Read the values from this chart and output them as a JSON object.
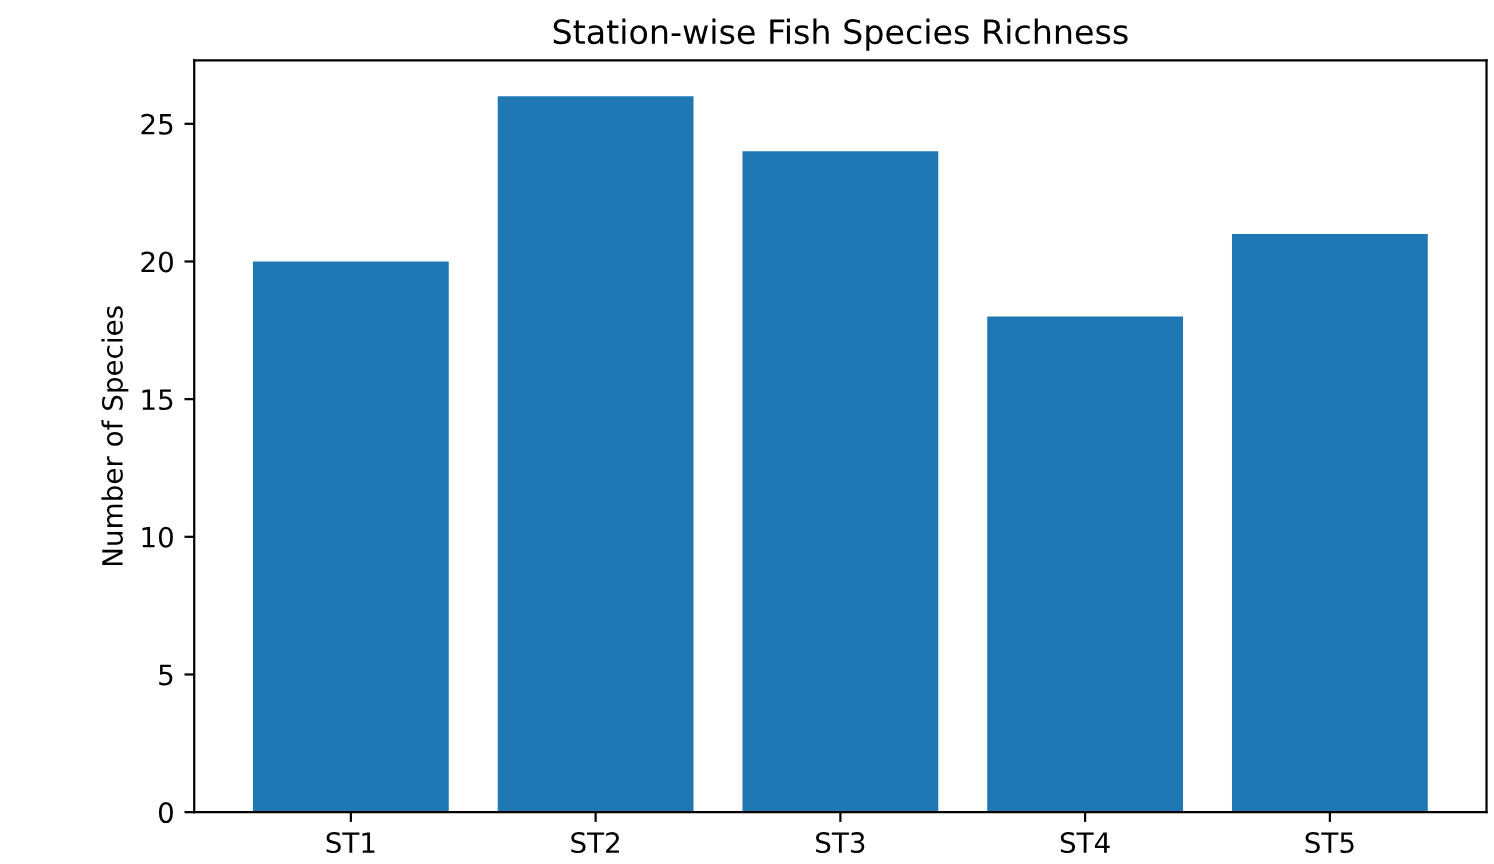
{
  "chart_data": {
    "type": "bar",
    "title": "Station-wise Fish Species Richness",
    "ylabel": "Number of Species",
    "categories": [
      "ST1",
      "ST2",
      "ST3",
      "ST4",
      "ST5"
    ],
    "values": [
      20,
      26,
      24,
      18,
      21
    ],
    "color": "#1f77b4",
    "ylim": [
      0,
      27.3
    ],
    "yticks": [
      0,
      5,
      10,
      15,
      20,
      25
    ],
    "grid": false,
    "legend": false
  }
}
